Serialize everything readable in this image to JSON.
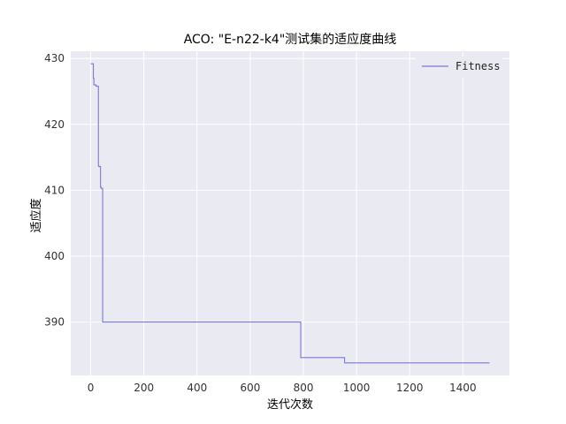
{
  "chart_data": {
    "type": "line",
    "title": "ACO: \"E-n22-k4\"测试集的适应度曲线",
    "xlabel": "迭代次数",
    "ylabel": "适应度",
    "xlim": [
      -75,
      1575
    ],
    "ylim": [
      381.9,
      431.1
    ],
    "x_ticks": [
      0,
      200,
      400,
      600,
      800,
      1000,
      1200,
      1400
    ],
    "y_ticks": [
      390,
      400,
      410,
      420,
      430
    ],
    "grid": true,
    "background": "#eaeaf2",
    "grid_color": "#ffffff",
    "legend_position": "top-right",
    "series": [
      {
        "name": "Fitness",
        "color": "#7b78d6",
        "step": true,
        "x": [
          0,
          10,
          12,
          20,
          29,
          31,
          37,
          39,
          45,
          47,
          790,
          955,
          1500
        ],
        "y": [
          429.2,
          427.0,
          426.0,
          425.8,
          413.7,
          413.6,
          410.5,
          410.3,
          390.0,
          390.0,
          384.6,
          383.8,
          383.8
        ]
      }
    ]
  }
}
